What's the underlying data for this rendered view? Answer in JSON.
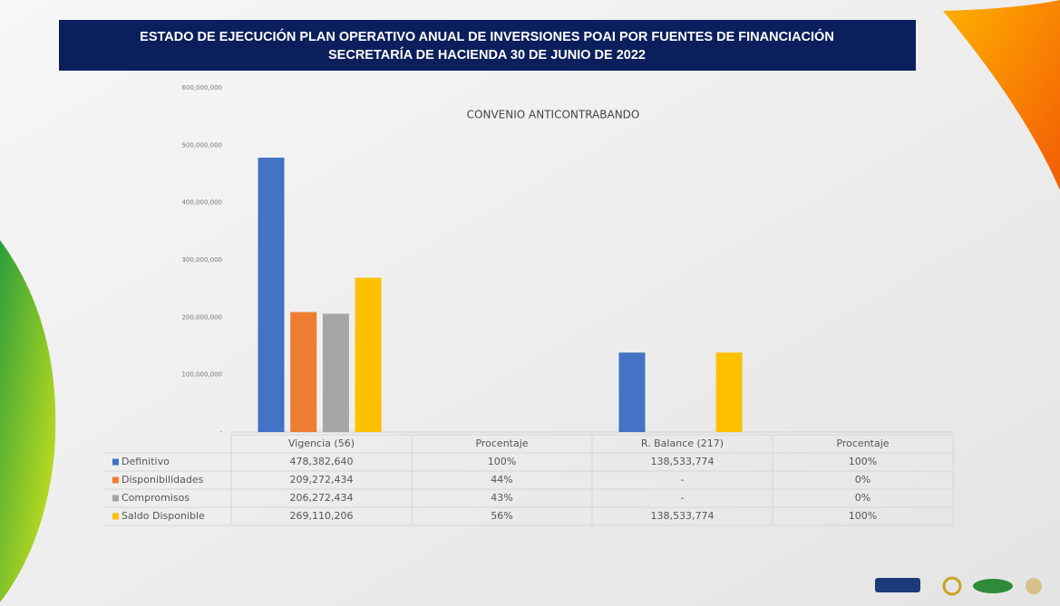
{
  "header": {
    "line1": "ESTADO DE EJECUCIÓN PLAN OPERATIVO ANUAL DE INVERSIONES POAI POR FUENTES DE FINANCIACIÓN",
    "line2": "SECRETARÍA DE HACIENDA 30 DE JUNIO DE 2022"
  },
  "chart_data": {
    "type": "bar",
    "title": "CONVENIO ANTICONTRABANDO",
    "categories": [
      "Vigencia (56)",
      "Procentaje",
      "R. Balance (217)",
      "Procentaje"
    ],
    "series": [
      {
        "name": "Definitivo",
        "color": "#4472c4",
        "values": [
          478382640,
          100,
          138533774,
          100
        ],
        "value_labels": [
          "478,382,640",
          "100%",
          "138,533,774",
          "100%"
        ]
      },
      {
        "name": "Disponibilidades",
        "color": "#ed7d31",
        "values": [
          209272434,
          44,
          0,
          0
        ],
        "value_labels": [
          "209,272,434",
          "44%",
          "-",
          "0%"
        ]
      },
      {
        "name": "Compromisos",
        "color": "#a5a5a5",
        "values": [
          206272434,
          43,
          0,
          0
        ],
        "value_labels": [
          "206,272,434",
          "43%",
          "-",
          "0%"
        ]
      },
      {
        "name": "Saldo Disponible",
        "color": "#ffc000",
        "values": [
          269110206,
          56,
          138533774,
          100
        ],
        "value_labels": [
          "269,110,206",
          "56%",
          "138,533,774",
          "100%"
        ]
      }
    ],
    "ylim": [
      0,
      600000000
    ],
    "yticks": [
      {
        "value": 0,
        "label": "-"
      },
      {
        "value": 100000000,
        "label": "100,000,000"
      },
      {
        "value": 200000000,
        "label": "200,000,000"
      },
      {
        "value": 300000000,
        "label": "300,000,000"
      },
      {
        "value": 400000000,
        "label": "400,000,000"
      },
      {
        "value": 500000000,
        "label": "500,000,000"
      },
      {
        "value": 600000000,
        "label": "600,000,000"
      }
    ],
    "grid": false
  }
}
